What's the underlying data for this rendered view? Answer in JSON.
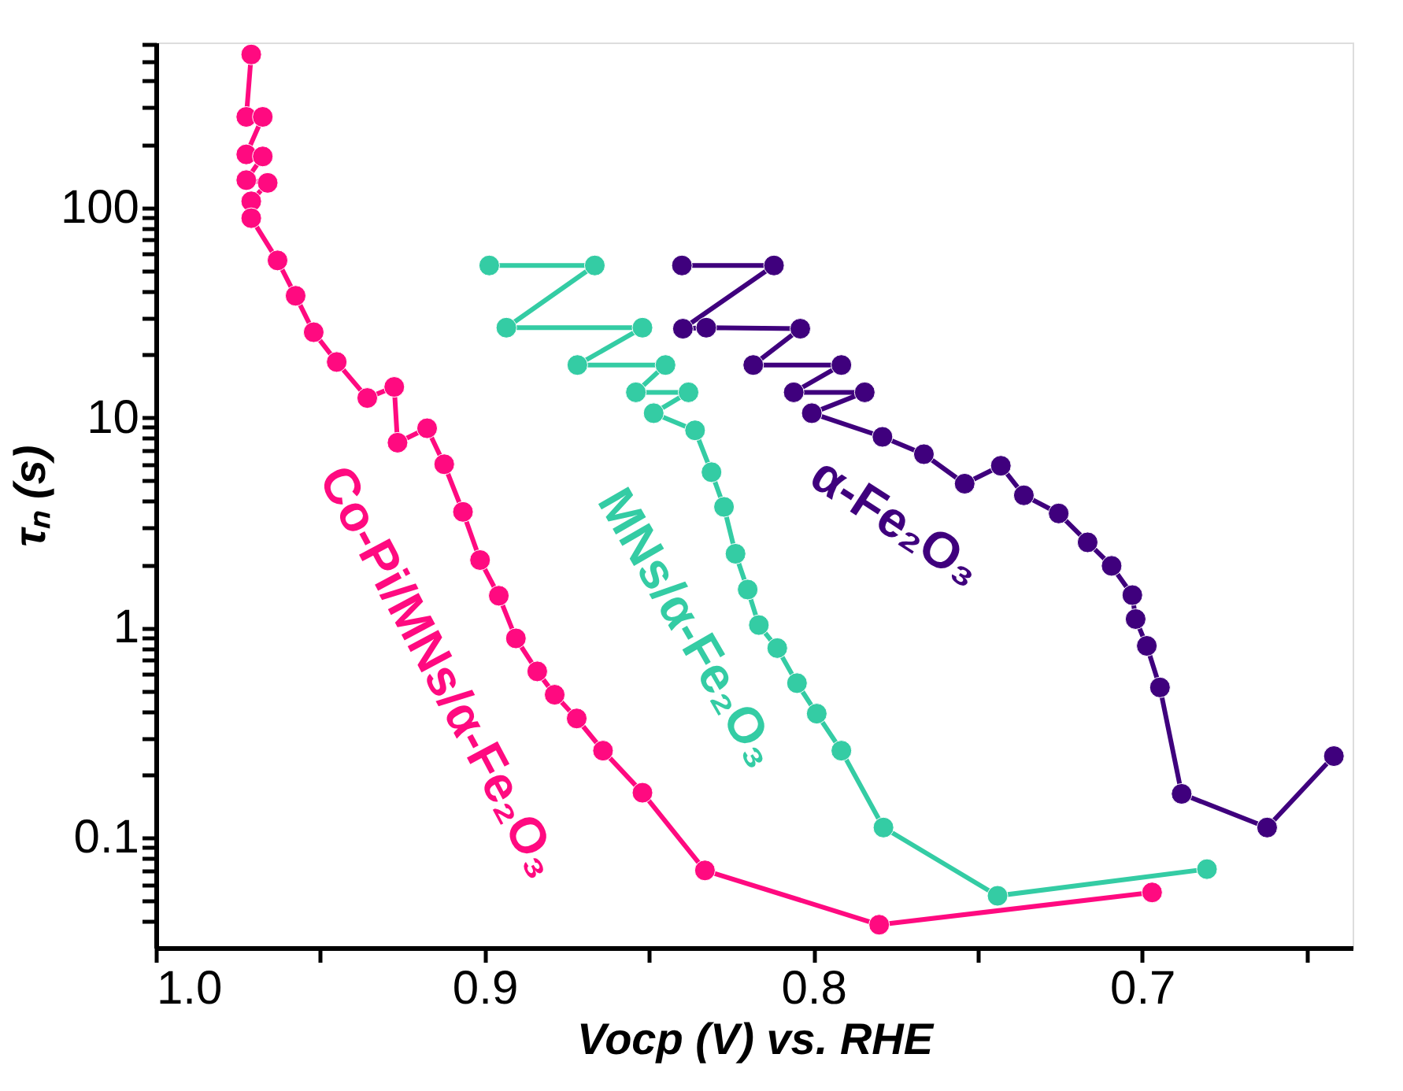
{
  "chart_data": {
    "type": "line",
    "xlabel": "Vocp (V) vs. RHE",
    "ylabel": "τₙ (s)",
    "log": "y",
    "marker": "circle",
    "line_style": "solid",
    "xlim": [
      1.0,
      0.636
    ],
    "ylim": [
      0.03,
      610
    ],
    "xticks": [
      {
        "value": 1.0,
        "label": "1.0"
      },
      {
        "value": 0.95,
        "label": null
      },
      0.9,
      {
        "value": 0.85,
        "label": null
      },
      0.8,
      {
        "value": 0.75,
        "label": null
      },
      0.7,
      {
        "value": 0.65,
        "label": null
      }
    ],
    "yticks": [
      {
        "value": 0.04,
        "label": null
      },
      {
        "value": 0.05,
        "label": null
      },
      {
        "value": 0.06,
        "label": null
      },
      {
        "value": 0.07,
        "label": null
      },
      {
        "value": 0.08,
        "label": null
      },
      {
        "value": 0.09,
        "label": null
      },
      0.1,
      {
        "value": 0.2,
        "label": null
      },
      {
        "value": 0.3,
        "label": null
      },
      {
        "value": 0.4,
        "label": null
      },
      {
        "value": 0.5,
        "label": null
      },
      {
        "value": 0.6,
        "label": null
      },
      {
        "value": 0.7,
        "label": null
      },
      {
        "value": 0.8,
        "label": null
      },
      {
        "value": 0.9,
        "label": null
      },
      1,
      {
        "value": 2,
        "label": null
      },
      {
        "value": 3,
        "label": null
      },
      {
        "value": 4,
        "label": null
      },
      {
        "value": 5,
        "label": null
      },
      {
        "value": 6,
        "label": null
      },
      {
        "value": 7,
        "label": null
      },
      {
        "value": 8,
        "label": null
      },
      {
        "value": 9,
        "label": null
      },
      10,
      {
        "value": 20,
        "label": null
      },
      {
        "value": 30,
        "label": null
      },
      {
        "value": 40,
        "label": null
      },
      {
        "value": 50,
        "label": null
      },
      {
        "value": 60,
        "label": null
      },
      {
        "value": 70,
        "label": null
      },
      {
        "value": 80,
        "label": null
      },
      {
        "value": 90,
        "label": null
      },
      100,
      {
        "value": 200,
        "label": null
      },
      {
        "value": 300,
        "label": null
      },
      {
        "value": 400,
        "label": null
      },
      {
        "value": 500,
        "label": null
      },
      {
        "value": 600,
        "label": null
      }
    ],
    "series": [
      {
        "name": "Co-Pi/MNs/α-Fe₂O₃",
        "color": "#ff0a80",
        "x": [
          0.971,
          0.9725,
          0.9675,
          0.9725,
          0.9675,
          0.9725,
          0.966,
          0.971,
          0.971,
          0.963,
          0.9575,
          0.952,
          0.945,
          0.9357,
          0.9275,
          0.9265,
          0.9175,
          0.9123,
          0.9066,
          0.9014,
          0.8957,
          0.8905,
          0.884,
          0.8787,
          0.872,
          0.864,
          0.852,
          0.833,
          0.78,
          0.697
        ],
        "values": [
          535,
          270,
          270,
          179,
          175,
          135,
          131,
          107,
          89,
          56,
          38,
          25.5,
          18.4,
          12.4,
          14,
          7.6,
          8.9,
          6.0,
          3.56,
          2.1,
          1.42,
          0.89,
          0.62,
          0.48,
          0.37,
          0.26,
          0.164,
          0.07,
          0.0386,
          0.055
        ]
      },
      {
        "name": "MNs/α-Fe₂O₃",
        "color": "#34cca4",
        "x": [
          0.8986,
          0.8665,
          0.8934,
          0.852,
          0.8718,
          0.845,
          0.854,
          0.838,
          0.8486,
          0.836,
          0.831,
          0.8272,
          0.8237,
          0.82,
          0.8166,
          0.811,
          0.805,
          0.799,
          0.7915,
          0.7787,
          0.744,
          0.6803
        ],
        "values": [
          53,
          53,
          26.8,
          26.8,
          17.8,
          17.8,
          13.2,
          13.2,
          10.5,
          8.7,
          5.5,
          3.76,
          2.25,
          1.52,
          1.03,
          0.8,
          0.545,
          0.39,
          0.26,
          0.112,
          0.053,
          0.071
        ]
      },
      {
        "name": "α-Fe₂O₃",
        "color": "#3f007d",
        "x": [
          0.84,
          0.812,
          0.8397,
          0.8326,
          0.804,
          0.8183,
          0.7915,
          0.806,
          0.7844,
          0.8005,
          0.779,
          0.7664,
          0.754,
          0.743,
          0.736,
          0.7254,
          0.7166,
          0.7093,
          0.703,
          0.702,
          0.6986,
          0.6946,
          0.688,
          0.662,
          0.6417
        ],
        "values": [
          53,
          53,
          26.5,
          26.8,
          26.5,
          17.8,
          17.8,
          13.2,
          13.2,
          10.5,
          8.1,
          6.7,
          4.85,
          5.9,
          4.27,
          3.5,
          2.55,
          1.97,
          1.43,
          1.1,
          0.82,
          0.52,
          0.162,
          0.112,
          0.245
        ]
      }
    ]
  }
}
